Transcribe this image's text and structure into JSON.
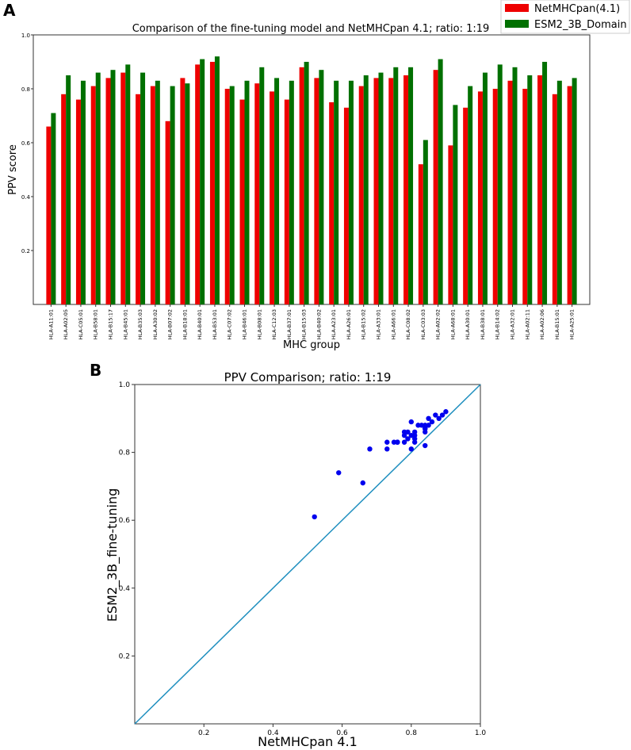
{
  "chart_data": [
    {
      "panel_label": "A",
      "type": "bar",
      "title": "Comparison of the fine-tuning model and NetMHCpan 4.1; ratio: 1:19",
      "xlabel": "MHC group",
      "ylabel": "PPV score",
      "ylim": [
        0,
        1.0
      ],
      "yticks": [
        "0.2",
        "0.4",
        "0.6",
        "0.8",
        "1.0"
      ],
      "legend_position": "top-right",
      "categories": [
        "HLA-A11:01",
        "HLA-A02:05",
        "HLA-C05:01",
        "HLA-B58:01",
        "HLA-B15:17",
        "HLA-B45:01",
        "HLA-B35:03",
        "HLA-A30:02",
        "HLA-B07:02",
        "HLA-B18:01",
        "HLA-B40:01",
        "HLA-B53:01",
        "HLA-C07:02",
        "HLA-B46:01",
        "HLA-B08:01",
        "HLA-C12:03",
        "HLA-B37:01",
        "HLA-B15:03",
        "HLA-B40:02",
        "HLA-A23:01",
        "HLA-A26:01",
        "HLA-B15:02",
        "HLA-A33:01",
        "HLA-A66:01",
        "HLA-C08:02",
        "HLA-C03:03",
        "HLA-A02:02",
        "HLA-A68:01",
        "HLA-A30:01",
        "HLA-B38:01",
        "HLA-B14:02",
        "HLA-A32:01",
        "HLA-A02:11",
        "HLA-A02:06",
        "HLA-B15:01",
        "HLA-A25:01"
      ],
      "series": [
        {
          "name": "NetMHCpan(4.1)",
          "color": "#ee0000",
          "values": [
            0.66,
            0.78,
            0.76,
            0.81,
            0.84,
            0.86,
            0.78,
            0.81,
            0.68,
            0.84,
            0.89,
            0.9,
            0.8,
            0.76,
            0.82,
            0.79,
            0.76,
            0.88,
            0.84,
            0.75,
            0.73,
            0.81,
            0.84,
            0.84,
            0.85,
            0.52,
            0.87,
            0.59,
            0.73,
            0.79,
            0.8,
            0.83,
            0.8,
            0.85,
            0.78,
            0.81
          ]
        },
        {
          "name": "ESM2_3B_Domain",
          "color": "#007000",
          "values": [
            0.71,
            0.85,
            0.83,
            0.86,
            0.87,
            0.89,
            0.86,
            0.83,
            0.81,
            0.82,
            0.91,
            0.92,
            0.81,
            0.83,
            0.88,
            0.84,
            0.83,
            0.9,
            0.87,
            0.83,
            0.83,
            0.85,
            0.86,
            0.88,
            0.88,
            0.61,
            0.91,
            0.74,
            0.81,
            0.86,
            0.89,
            0.88,
            0.85,
            0.9,
            0.83,
            0.84
          ]
        }
      ]
    },
    {
      "panel_label": "B",
      "type": "scatter",
      "title": "PPV Comparison; ratio: 1:19",
      "xlabel": "NetMHCpan 4.1",
      "ylabel": "ESM2_3B_fine-tuning",
      "xlim": [
        0,
        1.0
      ],
      "ylim": [
        0,
        1.0
      ],
      "xticks": [
        "0.2",
        "0.4",
        "0.6",
        "0.8",
        "1.0"
      ],
      "yticks": [
        "0.2",
        "0.4",
        "0.6",
        "0.8",
        "1.0"
      ],
      "point_color": "#0000ee",
      "line_color": "#1f8fbf",
      "reference_line": "y = x",
      "points": [
        [
          0.66,
          0.71
        ],
        [
          0.78,
          0.85
        ],
        [
          0.76,
          0.83
        ],
        [
          0.81,
          0.86
        ],
        [
          0.84,
          0.87
        ],
        [
          0.86,
          0.89
        ],
        [
          0.78,
          0.86
        ],
        [
          0.81,
          0.83
        ],
        [
          0.68,
          0.81
        ],
        [
          0.84,
          0.82
        ],
        [
          0.89,
          0.91
        ],
        [
          0.9,
          0.92
        ],
        [
          0.8,
          0.81
        ],
        [
          0.76,
          0.83
        ],
        [
          0.82,
          0.88
        ],
        [
          0.79,
          0.84
        ],
        [
          0.76,
          0.83
        ],
        [
          0.88,
          0.9
        ],
        [
          0.84,
          0.87
        ],
        [
          0.75,
          0.83
        ],
        [
          0.73,
          0.83
        ],
        [
          0.81,
          0.85
        ],
        [
          0.84,
          0.86
        ],
        [
          0.84,
          0.88
        ],
        [
          0.85,
          0.88
        ],
        [
          0.52,
          0.61
        ],
        [
          0.87,
          0.91
        ],
        [
          0.59,
          0.74
        ],
        [
          0.73,
          0.81
        ],
        [
          0.79,
          0.86
        ],
        [
          0.8,
          0.89
        ],
        [
          0.83,
          0.88
        ],
        [
          0.8,
          0.85
        ],
        [
          0.85,
          0.9
        ],
        [
          0.78,
          0.83
        ],
        [
          0.81,
          0.84
        ]
      ]
    }
  ]
}
